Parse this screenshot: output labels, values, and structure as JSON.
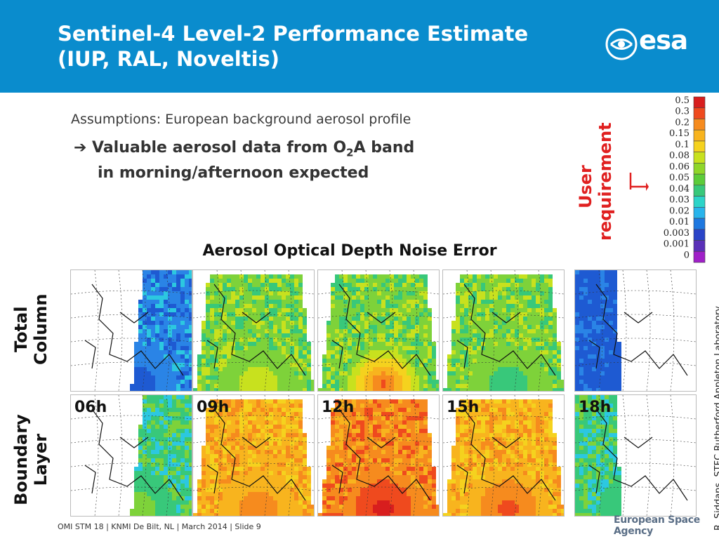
{
  "header": {
    "title_line1": "Sentinel-4 Level-2 Performance Estimate",
    "title_line2": "(IUP, RAL, Noveltis)",
    "logo_text": "esa",
    "bg_color": "#0a8ccd"
  },
  "assumptions": "Assumptions:  European background aerosol profile",
  "bullet": {
    "icon": "right-arrow-icon",
    "line1_pre": "Valuable aerosol data from O",
    "line1_sub": "2",
    "line1_post": "A band",
    "line2": "in morning/afternoon expected"
  },
  "user_requirement": {
    "line1": "User",
    "line2": "requirement",
    "color": "#e02020"
  },
  "colorscale": {
    "labels": [
      "0.5",
      "0.3",
      "0.2",
      "0.15",
      "0.1",
      "0.08",
      "0.06",
      "0.05",
      "0.04",
      "0.03",
      "0.02",
      "0.01",
      "0.003",
      "0.001",
      "0"
    ],
    "colors": [
      "#d81e1e",
      "#ef4a1e",
      "#f68b1e",
      "#f8b41e",
      "#f5d21e",
      "#c8e11e",
      "#8fd62a",
      "#5ccc3a",
      "#38c87a",
      "#2cd4c8",
      "#28b4ec",
      "#1e78e0",
      "#2a44c8",
      "#5a30b8",
      "#a020c8"
    ]
  },
  "aod_title": "Aerosol Optical Depth Noise Error",
  "rows": {
    "total_line1": "Total",
    "total_line2": "Column",
    "boundary_line1": "Boundary",
    "boundary_line2": "Layer"
  },
  "hours": [
    "06h",
    "09h",
    "12h",
    "15h",
    "18h"
  ],
  "credit": "R. Siddans, STFC Rutherford Appleton Laboratory",
  "footer": "OMI STM 18 | KNMI De Bilt, NL | March 2014 |  Slide 9",
  "agency": "European Space Agency"
}
